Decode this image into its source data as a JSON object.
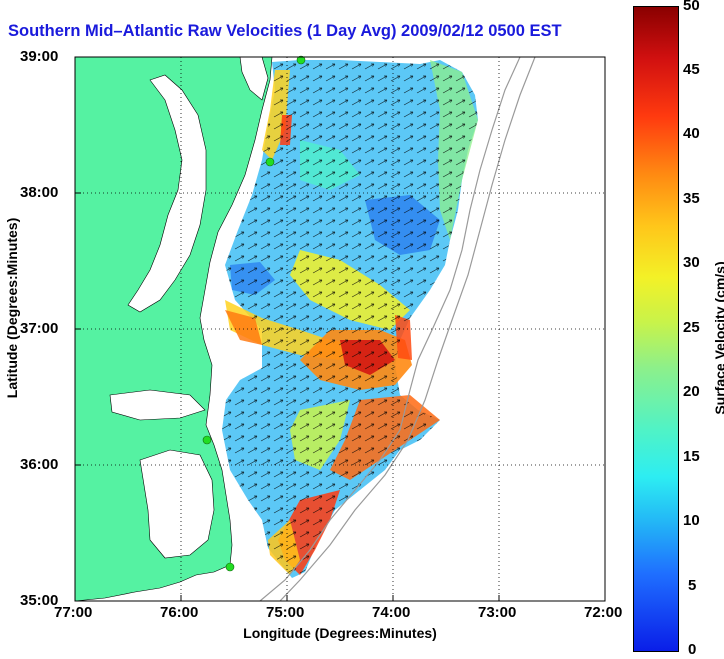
{
  "title": "Southern Mid–Atlantic Raw Velocities (1 Day Avg) 2009/02/12 0500 EST",
  "axes": {
    "xlabel": "Longitude (Degrees:Minutes)",
    "ylabel": "Latitude (Degrees:Minutes)",
    "x_ticks": [
      "77:00",
      "76:00",
      "75:00",
      "74:00",
      "73:00",
      "72:00"
    ],
    "y_ticks": [
      "39:00",
      "38:00",
      "37:00",
      "36:00",
      "35:00"
    ]
  },
  "colorbar": {
    "label": "Surface Velocity (cm/s)",
    "ticks": [
      "50",
      "45",
      "40",
      "35",
      "30",
      "25",
      "20",
      "15",
      "10",
      "5",
      "0"
    ],
    "range": [
      0,
      50
    ]
  },
  "colors": {
    "land": "#55f2a2",
    "water": "#ffffff",
    "title": "#1a1adc",
    "station": "#22dd22"
  },
  "icons": [
    "station-marker-icon",
    "velocity-arrow-icon"
  ]
}
